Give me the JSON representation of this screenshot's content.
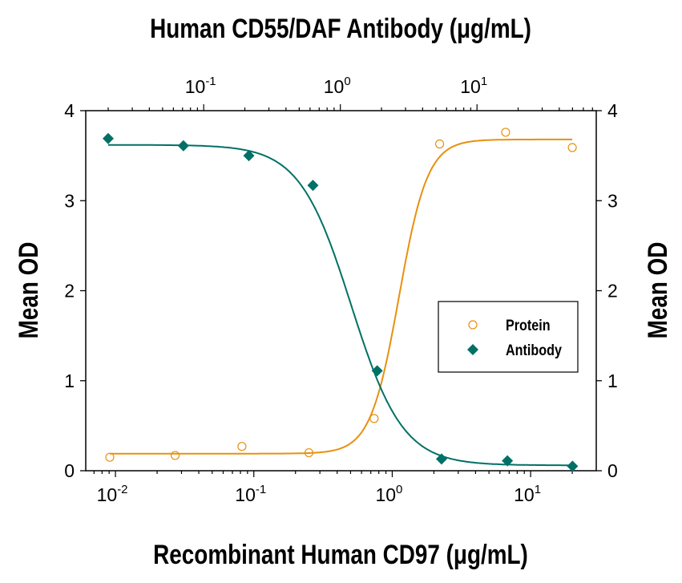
{
  "chart_data": {
    "type": "scatter",
    "title": "Human CD55/DAF Antibody (μg/mL)",
    "xlabel": "Recombinant Human CD97 (μg/mL)",
    "ylabel": "Mean OD",
    "ylabel_right": "Mean OD",
    "x_scale": "log",
    "x_bottom_range": [
      0.0061,
      29.8
    ],
    "x_top_range": [
      0.0137,
      74.6
    ],
    "ylim": [
      0,
      4
    ],
    "y_ticks": [
      "0",
      "1",
      "2",
      "3",
      "4"
    ],
    "x_bottom_ticks": [
      {
        "base": "10",
        "exp": "-2"
      },
      {
        "base": "10",
        "exp": "-1"
      },
      {
        "base": "10",
        "exp": "0"
      },
      {
        "base": "10",
        "exp": "1"
      }
    ],
    "x_top_ticks": [
      {
        "base": "10",
        "exp": "-1"
      },
      {
        "base": "10",
        "exp": "0"
      },
      {
        "base": "10",
        "exp": "1"
      }
    ],
    "grid": false,
    "legend_position": "center-right",
    "series": [
      {
        "name": "Protein",
        "axis": "bottom",
        "marker": "open-circle",
        "color": "#E8900F",
        "x": [
          0.0091,
          0.027,
          0.082,
          0.25,
          0.74,
          2.2,
          6.6,
          20
        ],
        "y": [
          0.15,
          0.17,
          0.27,
          0.2,
          0.58,
          3.63,
          3.76,
          3.59
        ],
        "fit": {
          "bottom": 0.19,
          "top": 3.68,
          "ec50": 1.12,
          "hill": 4.2
        }
      },
      {
        "name": "Antibody",
        "axis": "top",
        "marker": "filled-diamond",
        "color": "#007066",
        "x": [
          0.02,
          0.071,
          0.214,
          0.63,
          1.86,
          5.5,
          16.7,
          50
        ],
        "y": [
          3.69,
          3.61,
          3.5,
          3.17,
          1.11,
          0.13,
          0.11,
          0.05
        ],
        "fit": {
          "bottom": 0.06,
          "top": 3.62,
          "ec50": 1.2,
          "hill": 2.3
        }
      }
    ]
  }
}
